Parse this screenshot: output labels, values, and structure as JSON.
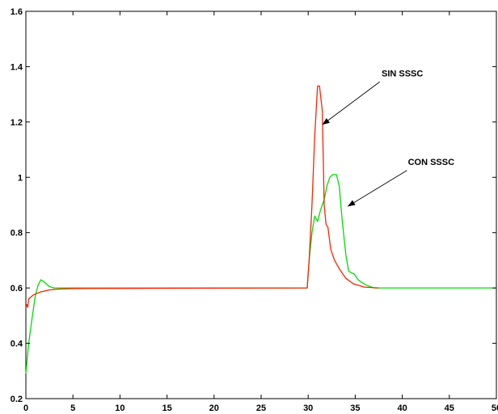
{
  "chart_data": {
    "type": "line",
    "title": "",
    "xlabel": "",
    "ylabel": "",
    "xlim": [
      0,
      50
    ],
    "ylim": [
      0.2,
      1.6
    ],
    "grid": false,
    "legend": "none",
    "x_ticks": [
      0,
      5,
      10,
      15,
      20,
      25,
      30,
      35,
      40,
      45,
      50
    ],
    "y_ticks": [
      0.2,
      0.4,
      0.6,
      0.8,
      1.0,
      1.2,
      1.4,
      1.6
    ],
    "x_tick_labels": [
      "0",
      "5",
      "10",
      "15",
      "20",
      "25",
      "30",
      "35",
      "40",
      "45",
      "50"
    ],
    "y_tick_labels": [
      "0.2",
      "0.4",
      "0.6",
      "0.8",
      "1",
      "1.2",
      "1.4",
      "1.6"
    ],
    "series": [
      {
        "color": "#00dd00",
        "points": [
          [
            0,
            0.29
          ],
          [
            0.3,
            0.4
          ],
          [
            0.7,
            0.5
          ],
          [
            1.0,
            0.57
          ],
          [
            1.3,
            0.61
          ],
          [
            1.6,
            0.63
          ],
          [
            2.0,
            0.62
          ],
          [
            2.5,
            0.605
          ],
          [
            3.0,
            0.6
          ],
          [
            4.0,
            0.6
          ],
          [
            10,
            0.6
          ],
          [
            20,
            0.6
          ],
          [
            29.9,
            0.6
          ],
          [
            30.1,
            0.7
          ],
          [
            30.4,
            0.8
          ],
          [
            30.7,
            0.86
          ],
          [
            31.0,
            0.84
          ],
          [
            31.3,
            0.88
          ],
          [
            31.7,
            0.92
          ],
          [
            32.0,
            0.97
          ],
          [
            32.3,
            1.0
          ],
          [
            32.6,
            1.01
          ],
          [
            33.0,
            1.01
          ],
          [
            33.3,
            0.97
          ],
          [
            33.6,
            0.85
          ],
          [
            34.0,
            0.72
          ],
          [
            34.3,
            0.66
          ],
          [
            34.6,
            0.655
          ],
          [
            34.9,
            0.65
          ],
          [
            35.3,
            0.63
          ],
          [
            35.7,
            0.62
          ],
          [
            36.2,
            0.61
          ],
          [
            37.0,
            0.6
          ],
          [
            38.0,
            0.6
          ],
          [
            45.0,
            0.6
          ],
          [
            50.0,
            0.6
          ]
        ]
      },
      {
        "color": "#ff2200",
        "points": [
          [
            0,
            0.53
          ],
          [
            0.1,
            0.54
          ],
          [
            0.2,
            0.53
          ],
          [
            0.3,
            0.56
          ],
          [
            0.8,
            0.575
          ],
          [
            1.5,
            0.585
          ],
          [
            2.5,
            0.593
          ],
          [
            3.5,
            0.596
          ],
          [
            5.3,
            0.598
          ],
          [
            5.3,
            0.598
          ],
          [
            29.9,
            0.6
          ],
          [
            30.1,
            0.7
          ],
          [
            30.4,
            0.9
          ],
          [
            30.7,
            1.15
          ],
          [
            31.0,
            1.33
          ],
          [
            31.2,
            1.33
          ],
          [
            31.5,
            1.24
          ],
          [
            31.7,
            0.9
          ],
          [
            31.9,
            0.83
          ],
          [
            32.1,
            0.82
          ],
          [
            32.4,
            0.74
          ],
          [
            32.8,
            0.7
          ],
          [
            33.3,
            0.67
          ],
          [
            34.0,
            0.635
          ],
          [
            34.8,
            0.615
          ],
          [
            36.0,
            0.603
          ],
          [
            37.5,
            0.6
          ]
        ]
      }
    ],
    "annotations": [
      {
        "text": "SIN SSSC",
        "text_x": 37.8,
        "text_y": 1.365,
        "arrow_from": [
          37.6,
          1.345
        ],
        "arrow_to": [
          31.5,
          1.19
        ]
      },
      {
        "text": "CON SSSC",
        "text_x": 40.6,
        "text_y": 1.045,
        "arrow_from": [
          40.5,
          1.025
        ],
        "arrow_to": [
          34.2,
          0.895
        ]
      }
    ]
  }
}
